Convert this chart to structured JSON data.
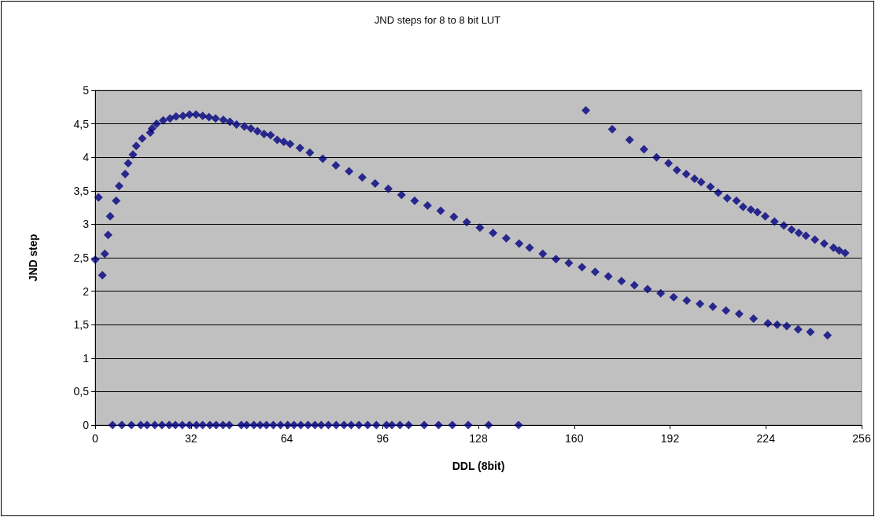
{
  "chart_data": {
    "type": "scatter",
    "title": "JND steps for 8 to 8 bit LUT",
    "xlabel": "DDL (8bit)",
    "ylabel": "JND step",
    "x": [
      0,
      1.1,
      2.4,
      3.2,
      4.3,
      5,
      7,
      8,
      10,
      11,
      12.6,
      13.7,
      15.7,
      18.4,
      19,
      20.5,
      22.7,
      25,
      27,
      29.3,
      31.5,
      33.7,
      35.9,
      38,
      40.2,
      42.8,
      45,
      47.2,
      49.8,
      52,
      54.2,
      56.4,
      58.6,
      60.8,
      63,
      65.1,
      68.4,
      71.7,
      76,
      80.4,
      84.8,
      89.2,
      93.5,
      97.9,
      102.3,
      106.7,
      111,
      115.4,
      119.8,
      124.1,
      128.5,
      132.9,
      137.3,
      141.6,
      145.1,
      149.5,
      153.9,
      158.2,
      162.6,
      167,
      171.4,
      175.8,
      180.1,
      184.5,
      188.9,
      193.2,
      197.6,
      202,
      206.3,
      210.7,
      215.1,
      219.9,
      224.7,
      227.8,
      231,
      234.8,
      238.9,
      244.6,
      163.9,
      172.7,
      178.5,
      183.3,
      187.5,
      191.5,
      194.3,
      197.4,
      200.2,
      202.4,
      205.5,
      208.1,
      211.1,
      214.2,
      216.4,
      219,
      221.2,
      223.8,
      226.9,
      230,
      232.6,
      235,
      237.4,
      240.4,
      243.5,
      246.6,
      248.5,
      250.5,
      5.8,
      8.9,
      12.1,
      15.2,
      17.3,
      19.9,
      22.3,
      24.7,
      26.8,
      29.1,
      31.5,
      33.8,
      35.9,
      38.3,
      40.4,
      42.7,
      44.8,
      48.8,
      50.6,
      53,
      55.1,
      57.2,
      59.5,
      61.9,
      64.3,
      66.4,
      68.7,
      71.1,
      73.4,
      75.5,
      77.9,
      80.5,
      83.1,
      85.5,
      88.1,
      91,
      93.9,
      97.3,
      99.1,
      101.8,
      104.7,
      109.9,
      114.7,
      119.3,
      124.6,
      131.4,
      141.4
    ],
    "series": [
      {
        "color": "#000080",
        "values": [
          2.47,
          3.4,
          2.24,
          2.56,
          2.84,
          3.12,
          3.35,
          3.57,
          3.75,
          3.91,
          4.04,
          4.17,
          4.28,
          4.37,
          4.43,
          4.5,
          4.55,
          4.58,
          4.61,
          4.62,
          4.64,
          4.64,
          4.62,
          4.6,
          4.58,
          4.56,
          4.53,
          4.49,
          4.46,
          4.43,
          4.39,
          4.35,
          4.33,
          4.26,
          4.23,
          4.2,
          4.14,
          4.07,
          3.98,
          3.88,
          3.79,
          3.7,
          3.61,
          3.53,
          3.44,
          3.35,
          3.28,
          3.2,
          3.11,
          3.03,
          2.95,
          2.87,
          2.79,
          2.71,
          2.65,
          2.56,
          2.48,
          2.42,
          2.36,
          2.29,
          2.22,
          2.15,
          2.09,
          2.03,
          1.97,
          1.91,
          1.86,
          1.81,
          1.77,
          1.71,
          1.66,
          1.59,
          1.52,
          1.5,
          1.48,
          1.43,
          1.39,
          1.34,
          4.7,
          4.42,
          4.26,
          4.12,
          4,
          3.91,
          3.81,
          3.75,
          3.68,
          3.63,
          3.56,
          3.47,
          3.39,
          3.35,
          3.26,
          3.22,
          3.18,
          3.12,
          3.04,
          2.98,
          2.92,
          2.87,
          2.83,
          2.77,
          2.71,
          2.65,
          2.61,
          2.57,
          0,
          0,
          0,
          0,
          0,
          0,
          0,
          0,
          0,
          0,
          0,
          0,
          0,
          0,
          0,
          0,
          0,
          0,
          0,
          0,
          0,
          0,
          0,
          0,
          0,
          0,
          0,
          0,
          0,
          0,
          0,
          0,
          0,
          0,
          0,
          0,
          0,
          0,
          0,
          0,
          0,
          0,
          0,
          0,
          0,
          0,
          0
        ]
      }
    ],
    "xlim": [
      0,
      256
    ],
    "xticks": [
      0,
      32,
      64,
      96,
      128,
      160,
      192,
      224,
      256
    ],
    "ylim": [
      0,
      5
    ],
    "yticks": [
      0,
      {
        "value": 0.5,
        "label": "0,5"
      },
      1,
      {
        "value": 1.5,
        "label": "1,5"
      },
      2,
      {
        "value": 2.5,
        "label": "2,5"
      },
      3,
      {
        "value": 3.5,
        "label": "3,5"
      },
      4,
      {
        "value": 4.5,
        "label": "4,5"
      },
      5
    ],
    "grid": "y",
    "marker": "diamond"
  }
}
